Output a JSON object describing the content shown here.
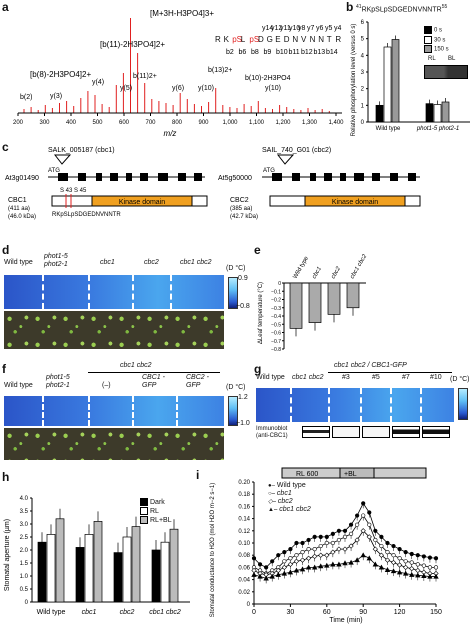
{
  "panel_labels": {
    "a": "a",
    "b": "b",
    "c": "c",
    "d": "d",
    "e": "e",
    "f": "f",
    "g": "g",
    "h": "h",
    "i": "i"
  },
  "panel_a": {
    "ions": [
      "[M+3H-H3PO4]3+",
      "[b(11)-2H3PO4]2+",
      "[b(8)-2H3PO4]2+",
      "y(4)",
      "b(2)",
      "y(3)",
      "y(5)",
      "b(11)2+",
      "b(13)2+",
      "y(6)",
      "y(10)",
      "b(10)-2H3PO4",
      "y(10)"
    ],
    "peptide_y": [
      "y14",
      "y12",
      "y11",
      "y10",
      "y8",
      "y7",
      "y6",
      "y5",
      "y4"
    ],
    "peptide": [
      "R",
      "K",
      "pS",
      "L",
      "pS",
      "D",
      "G",
      "E",
      "D",
      "N",
      "V",
      "N",
      "N",
      "T",
      "R"
    ],
    "peptide_b": [
      "b2",
      "b6",
      "b8",
      "b9",
      "b10",
      "b11",
      "b12",
      "b13",
      "b14"
    ],
    "xticks": [
      "200",
      "300",
      "400",
      "500",
      "600",
      "700",
      "800",
      "900",
      "1,000",
      "1,100",
      "1,200",
      "1,300",
      "1,400"
    ],
    "xlabel": "m/z"
  },
  "panel_b": {
    "title_sup1": "41",
    "title_seq": "RKpSLpSDGEDNVNNTR",
    "title_sup2": "55",
    "ylabel": "Relative phosphorylation level (versus 0 s)",
    "legend": [
      "0 s",
      "30 s",
      "150 s"
    ],
    "blot_labels": [
      "RL",
      "BL"
    ],
    "xticks": [
      "Wild type",
      "phot1-5 phot2-1"
    ],
    "yticks": [
      "0",
      "1",
      "2",
      "3",
      "4",
      "5",
      "6"
    ],
    "chart_data": {
      "type": "bar",
      "categories": [
        "Wild type",
        "phot1-5 phot2-1"
      ],
      "series": [
        {
          "name": "0 s",
          "values": [
            1,
            1.1
          ]
        },
        {
          "name": "30 s",
          "values": [
            4.5,
            1.05
          ]
        },
        {
          "name": "150 s",
          "values": [
            4.95,
            1.2
          ]
        }
      ],
      "ylim": [
        0,
        6
      ],
      "colors": [
        "#000000",
        "#ffffff",
        "#999999"
      ]
    }
  },
  "panel_c": {
    "gene1_salk": "SALK_005187 (cbc1)",
    "gene1_atg": "ATG",
    "gene1_locus": "At3g01490",
    "gene2_sail": "SAIL_740_G01 (cbc2)",
    "gene2_atg": "ATG",
    "gene2_locus": "At5g50000",
    "cbc1_name": "CBC1",
    "cbc1_aa": "(411 aa)",
    "cbc1_kda": "(46.0 kDa)",
    "cbc1_sites": "S 43 S 45",
    "cbc1_peptide": "RKpSLpSDGEDNVNNTR",
    "cbc2_name": "CBC2",
    "cbc2_aa": "(385 aa)",
    "cbc2_kda": "(42.7 kDa)",
    "kinase_label": "Kinase domain"
  },
  "panel_d": {
    "genotypes": [
      "Wild type",
      "phot1-5 phot2-1",
      "cbc1",
      "cbc2",
      "cbc1 cbc2"
    ],
    "scale_unit": "(D °C)",
    "scale_max": "0.9",
    "scale_min": "−0.8"
  },
  "panel_e": {
    "ylabel": "ΔLeaf temperature (°C)",
    "categories": [
      "Wild type",
      "cbc1",
      "cbc2",
      "cbc1 cbc2"
    ],
    "yticks": [
      "0",
      "−0.1",
      "−0.2",
      "−0.3",
      "−0.4",
      "−0.5",
      "−0.6",
      "−0.7",
      "−0.8"
    ],
    "chart_data": {
      "type": "bar",
      "categories": [
        "Wild type",
        "cbc1",
        "cbc2",
        "cbc1 cbc2"
      ],
      "values": [
        -0.55,
        -0.48,
        -0.38,
        -0.3
      ],
      "ylim": [
        -0.8,
        0
      ]
    }
  },
  "panel_f": {
    "header": "cbc1 cbc2",
    "genotypes": [
      "Wild type",
      "phot1-5 phot2-1",
      "(–)",
      "CBC1 -GFP",
      "CBC2 -GFP"
    ],
    "scale_unit": "(D °C)",
    "scale_max": "1.2",
    "scale_min": "−1.0"
  },
  "panel_g": {
    "header": "cbc1 cbc2 / CBC1-GFP",
    "genotypes": [
      "Wild type",
      "cbc1 cbc2",
      "#3",
      "#5",
      "#7",
      "#10"
    ],
    "scale_unit": "(D °C)",
    "blot_label": "Immunoblot (anti-CBC1)"
  },
  "panel_h": {
    "ylabel": "Stomatal aperture (µm)",
    "legend": [
      "Dark",
      "RL",
      "RL+BL"
    ],
    "yticks": [
      "0",
      "0.5",
      "1.0",
      "1.5",
      "2.0",
      "2.5",
      "3.0",
      "3.5",
      "4.0"
    ],
    "chart_data": {
      "type": "bar",
      "categories": [
        "Wild type",
        "cbc1",
        "cbc2",
        "cbc1 cbc2"
      ],
      "series": [
        {
          "name": "Dark",
          "values": [
            2.3,
            2.1,
            1.9,
            2.0
          ]
        },
        {
          "name": "RL",
          "values": [
            2.6,
            2.6,
            2.5,
            2.3
          ]
        },
        {
          "name": "RL+BL",
          "values": [
            3.2,
            3.1,
            2.9,
            2.8
          ]
        }
      ],
      "ylim": [
        0,
        4
      ]
    }
  },
  "panel_i": {
    "rl_label": "RL 600",
    "bl_label": "+BL",
    "ylabel": "Stomatal conductance to H2O (mol H2O m−2 s−1)",
    "xlabel": "Time (min)",
    "legend": [
      "Wild type",
      "cbc1",
      "cbc2",
      "cbc1 cbc2"
    ],
    "xticks": [
      "0",
      "30",
      "60",
      "90",
      "120",
      "150"
    ],
    "yticks": [
      "0",
      "0.02",
      "0.04",
      "0.06",
      "0.08",
      "0.10",
      "0.12",
      "0.14",
      "0.16",
      "0.18",
      "0.20"
    ],
    "chart_data": {
      "type": "line",
      "x": [
        0,
        5,
        10,
        15,
        20,
        25,
        30,
        35,
        40,
        45,
        50,
        55,
        60,
        65,
        70,
        75,
        80,
        85,
        90,
        95,
        100,
        105,
        110,
        115,
        120,
        125,
        130,
        135,
        140,
        145,
        150
      ],
      "series": [
        {
          "name": "Wild type",
          "values": [
            0.075,
            0.065,
            0.06,
            0.07,
            0.08,
            0.085,
            0.09,
            0.1,
            0.1,
            0.105,
            0.11,
            0.11,
            0.11,
            0.115,
            0.12,
            0.12,
            0.13,
            0.145,
            0.165,
            0.15,
            0.12,
            0.11,
            0.1,
            0.095,
            0.09,
            0.085,
            0.082,
            0.08,
            0.078,
            0.076,
            0.075
          ]
        },
        {
          "name": "cbc1",
          "values": [
            0.06,
            0.055,
            0.05,
            0.055,
            0.06,
            0.07,
            0.075,
            0.08,
            0.085,
            0.09,
            0.09,
            0.095,
            0.1,
            0.1,
            0.105,
            0.11,
            0.115,
            0.13,
            0.145,
            0.13,
            0.105,
            0.095,
            0.085,
            0.08,
            0.075,
            0.07,
            0.068,
            0.065,
            0.063,
            0.06,
            0.06
          ]
        },
        {
          "name": "cbc2",
          "values": [
            0.055,
            0.05,
            0.048,
            0.05,
            0.055,
            0.06,
            0.065,
            0.07,
            0.072,
            0.075,
            0.078,
            0.08,
            0.08,
            0.085,
            0.09,
            0.09,
            0.095,
            0.105,
            0.12,
            0.11,
            0.09,
            0.08,
            0.072,
            0.068,
            0.064,
            0.06,
            0.058,
            0.055,
            0.052,
            0.05,
            0.05
          ]
        },
        {
          "name": "cbc1 cbc2",
          "values": [
            0.048,
            0.045,
            0.042,
            0.045,
            0.048,
            0.05,
            0.052,
            0.055,
            0.057,
            0.06,
            0.06,
            0.062,
            0.063,
            0.065,
            0.065,
            0.067,
            0.068,
            0.072,
            0.08,
            0.075,
            0.065,
            0.06,
            0.056,
            0.054,
            0.052,
            0.05,
            0.048,
            0.047,
            0.046,
            0.045,
            0.045
          ]
        }
      ],
      "xlim": [
        0,
        150
      ],
      "ylim": [
        0,
        0.2
      ]
    }
  }
}
